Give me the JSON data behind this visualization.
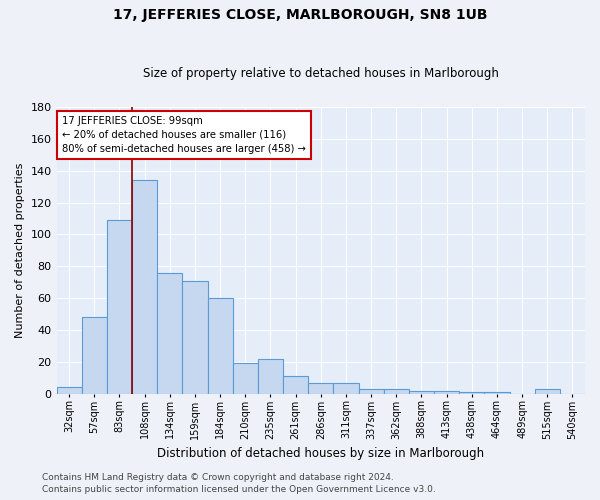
{
  "title": "17, JEFFERIES CLOSE, MARLBOROUGH, SN8 1UB",
  "subtitle": "Size of property relative to detached houses in Marlborough",
  "xlabel": "Distribution of detached houses by size in Marlborough",
  "ylabel": "Number of detached properties",
  "categories": [
    "32sqm",
    "57sqm",
    "83sqm",
    "108sqm",
    "134sqm",
    "159sqm",
    "184sqm",
    "210sqm",
    "235sqm",
    "261sqm",
    "286sqm",
    "311sqm",
    "337sqm",
    "362sqm",
    "388sqm",
    "413sqm",
    "438sqm",
    "464sqm",
    "489sqm",
    "515sqm",
    "540sqm"
  ],
  "values": [
    4,
    48,
    109,
    134,
    76,
    71,
    60,
    19,
    22,
    11,
    7,
    7,
    3,
    3,
    2,
    2,
    1,
    1,
    0,
    3,
    0
  ],
  "bar_color": "#c5d8f0",
  "bar_edge_color": "#5b9bd5",
  "ylim": [
    0,
    180
  ],
  "yticks": [
    0,
    20,
    40,
    60,
    80,
    100,
    120,
    140,
    160,
    180
  ],
  "vline_x": 2.5,
  "vline_color": "#8b0000",
  "annotation_text": "17 JEFFERIES CLOSE: 99sqm\n← 20% of detached houses are smaller (116)\n80% of semi-detached houses are larger (458) →",
  "annotation_box_color": "#ffffff",
  "annotation_box_edge_color": "#cc0000",
  "footer_line1": "Contains HM Land Registry data © Crown copyright and database right 2024.",
  "footer_line2": "Contains public sector information licensed under the Open Government Licence v3.0.",
  "background_color": "#eef2f8",
  "plot_background_color": "#e4edf8",
  "grid_color": "#ffffff",
  "title_fontsize": 10,
  "subtitle_fontsize": 8.5,
  "footer_fontsize": 6.5
}
